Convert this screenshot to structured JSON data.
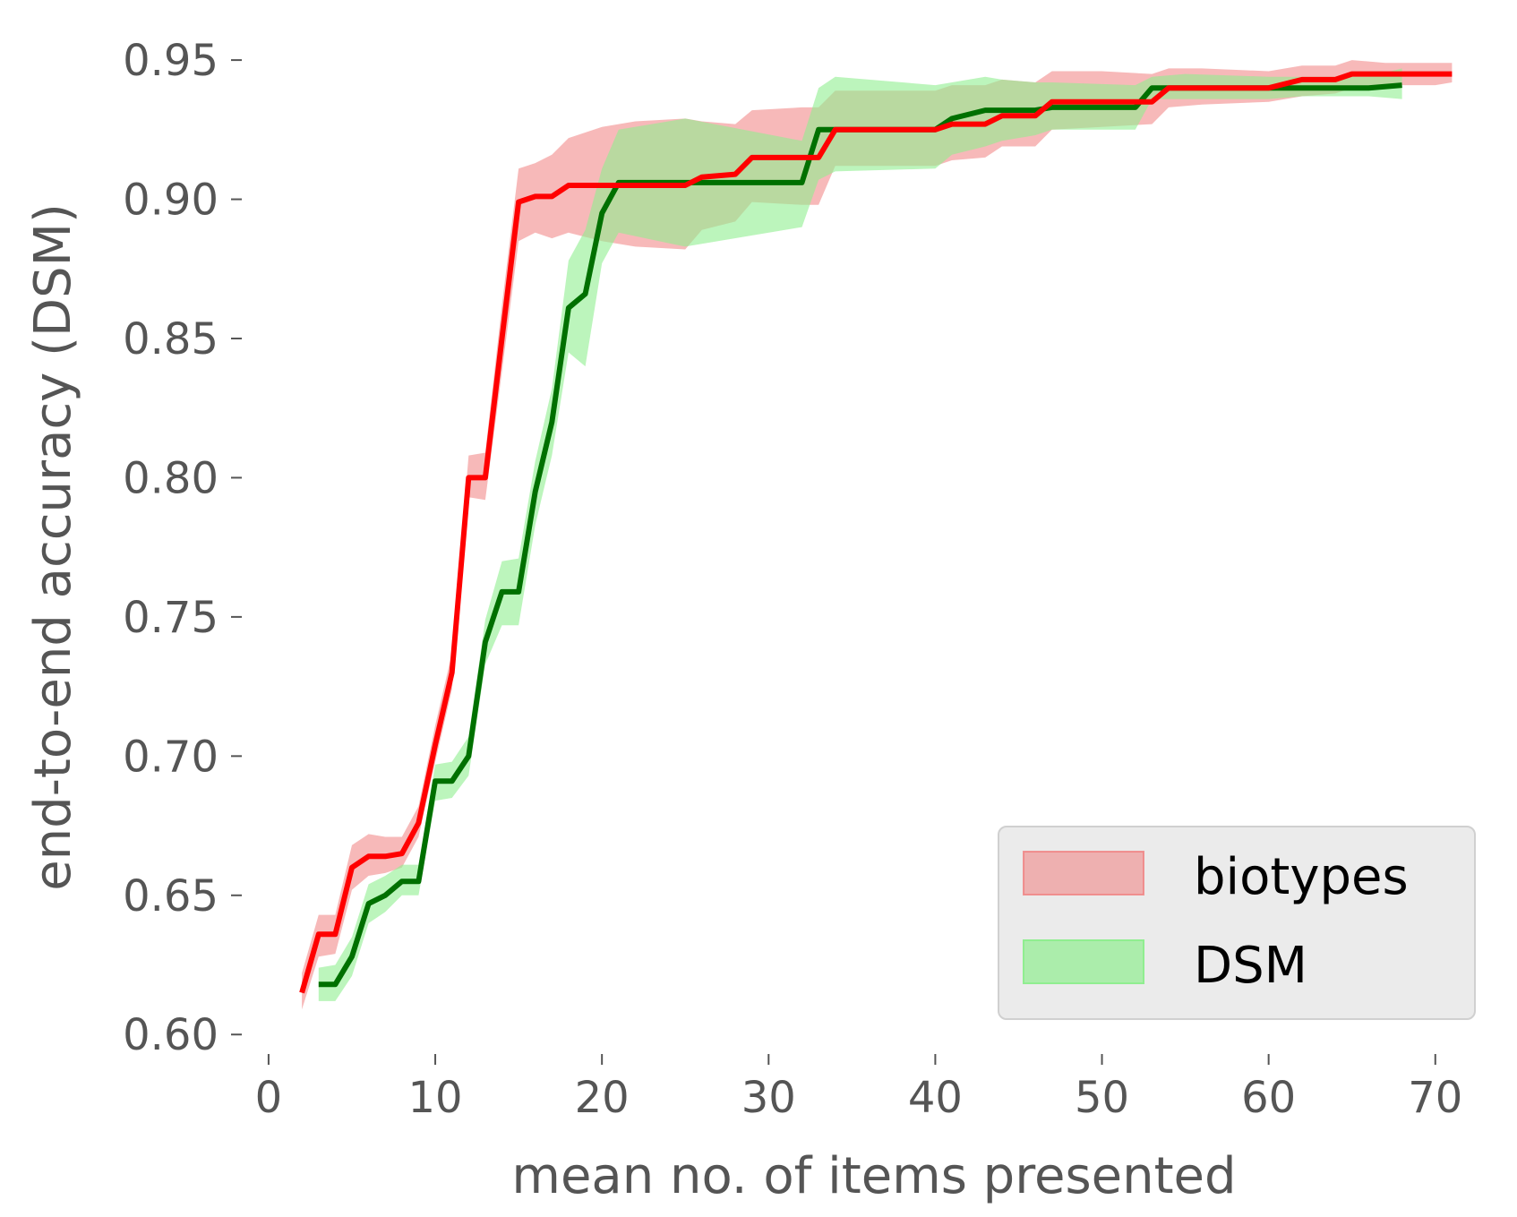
{
  "chart_data": {
    "type": "line",
    "xlabel": "mean no. of items presented",
    "ylabel": "end-to-end accuracy (DSM)",
    "xlim": [
      -1.5,
      72
    ],
    "ylim": [
      0.593,
      0.96
    ],
    "x_ticks": [
      {
        "value": 0,
        "label": "0"
      },
      {
        "value": 10,
        "label": "10"
      },
      {
        "value": 20,
        "label": "20"
      },
      {
        "value": 30,
        "label": "30"
      },
      {
        "value": 40,
        "label": "40"
      },
      {
        "value": 50,
        "label": "50"
      },
      {
        "value": 60,
        "label": "60"
      },
      {
        "value": 70,
        "label": "70"
      }
    ],
    "y_ticks": [
      {
        "value": 0.6,
        "label": "0.60"
      },
      {
        "value": 0.65,
        "label": "0.65"
      },
      {
        "value": 0.7,
        "label": "0.70"
      },
      {
        "value": 0.75,
        "label": "0.75"
      },
      {
        "value": 0.8,
        "label": "0.80"
      },
      {
        "value": 0.85,
        "label": "0.85"
      },
      {
        "value": 0.9,
        "label": "0.90"
      },
      {
        "value": 0.95,
        "label": "0.95"
      }
    ],
    "grid": false,
    "legend": {
      "position": "bottom-right"
    },
    "series": [
      {
        "name": "biotypes",
        "line_color": "#ff0000",
        "band_color": "#f08080",
        "x": [
          2,
          3,
          4,
          5,
          6,
          7,
          8,
          9,
          10,
          11,
          12,
          13,
          14,
          15,
          16,
          17,
          18,
          20,
          22,
          25,
          26,
          28,
          29,
          32,
          33,
          34,
          40,
          41,
          43,
          44,
          46,
          47,
          50,
          53,
          54,
          56,
          60,
          62,
          64,
          65,
          67,
          70,
          71
        ],
        "y": [
          0.615,
          0.636,
          0.636,
          0.66,
          0.664,
          0.664,
          0.665,
          0.676,
          0.704,
          0.73,
          0.8,
          0.8,
          0.85,
          0.899,
          0.901,
          0.901,
          0.905,
          0.905,
          0.905,
          0.905,
          0.908,
          0.909,
          0.915,
          0.915,
          0.915,
          0.925,
          0.925,
          0.927,
          0.927,
          0.93,
          0.93,
          0.935,
          0.935,
          0.935,
          0.94,
          0.94,
          0.94,
          0.943,
          0.943,
          0.945,
          0.945,
          0.945,
          0.945
        ],
        "lower": [
          0.609,
          0.628,
          0.629,
          0.652,
          0.657,
          0.658,
          0.66,
          0.671,
          0.698,
          0.724,
          0.793,
          0.792,
          0.838,
          0.885,
          0.888,
          0.886,
          0.888,
          0.885,
          0.883,
          0.882,
          0.889,
          0.892,
          0.899,
          0.898,
          0.898,
          0.912,
          0.912,
          0.914,
          0.915,
          0.919,
          0.919,
          0.925,
          0.926,
          0.927,
          0.933,
          0.934,
          0.935,
          0.937,
          0.938,
          0.94,
          0.941,
          0.941,
          0.942
        ],
        "upper": [
          0.622,
          0.643,
          0.643,
          0.668,
          0.672,
          0.671,
          0.671,
          0.682,
          0.711,
          0.737,
          0.808,
          0.809,
          0.862,
          0.911,
          0.913,
          0.916,
          0.922,
          0.926,
          0.928,
          0.929,
          0.928,
          0.927,
          0.932,
          0.933,
          0.933,
          0.939,
          0.939,
          0.941,
          0.941,
          0.943,
          0.942,
          0.946,
          0.946,
          0.945,
          0.947,
          0.947,
          0.946,
          0.948,
          0.948,
          0.95,
          0.949,
          0.949,
          0.949
        ]
      },
      {
        "name": "DSM",
        "line_color": "#007000",
        "band_color": "#90ee90",
        "x": [
          3,
          4,
          5,
          6,
          7,
          8,
          9,
          10,
          11,
          12,
          13,
          14,
          15,
          16,
          17,
          18,
          19,
          20,
          21,
          25,
          32,
          33,
          34,
          40,
          41,
          43,
          44,
          46,
          47,
          52,
          53,
          55,
          60,
          62,
          66,
          68
        ],
        "y": [
          0.618,
          0.618,
          0.628,
          0.647,
          0.65,
          0.655,
          0.655,
          0.691,
          0.691,
          0.7,
          0.741,
          0.759,
          0.759,
          0.795,
          0.82,
          0.861,
          0.866,
          0.895,
          0.906,
          0.906,
          0.906,
          0.925,
          0.925,
          0.925,
          0.929,
          0.932,
          0.932,
          0.932,
          0.933,
          0.933,
          0.94,
          0.94,
          0.94,
          0.94,
          0.94,
          0.941
        ],
        "lower": [
          0.612,
          0.612,
          0.621,
          0.64,
          0.644,
          0.65,
          0.65,
          0.684,
          0.685,
          0.693,
          0.733,
          0.747,
          0.747,
          0.783,
          0.808,
          0.845,
          0.84,
          0.877,
          0.888,
          0.883,
          0.89,
          0.907,
          0.91,
          0.911,
          0.916,
          0.919,
          0.921,
          0.923,
          0.925,
          0.925,
          0.936,
          0.936,
          0.936,
          0.937,
          0.937,
          0.936
        ],
        "upper": [
          0.624,
          0.625,
          0.635,
          0.654,
          0.657,
          0.661,
          0.661,
          0.697,
          0.698,
          0.707,
          0.749,
          0.77,
          0.771,
          0.806,
          0.832,
          0.878,
          0.889,
          0.911,
          0.925,
          0.929,
          0.921,
          0.94,
          0.944,
          0.941,
          0.942,
          0.944,
          0.943,
          0.942,
          0.942,
          0.941,
          0.944,
          0.945,
          0.944,
          0.944,
          0.944,
          0.947
        ]
      }
    ]
  }
}
